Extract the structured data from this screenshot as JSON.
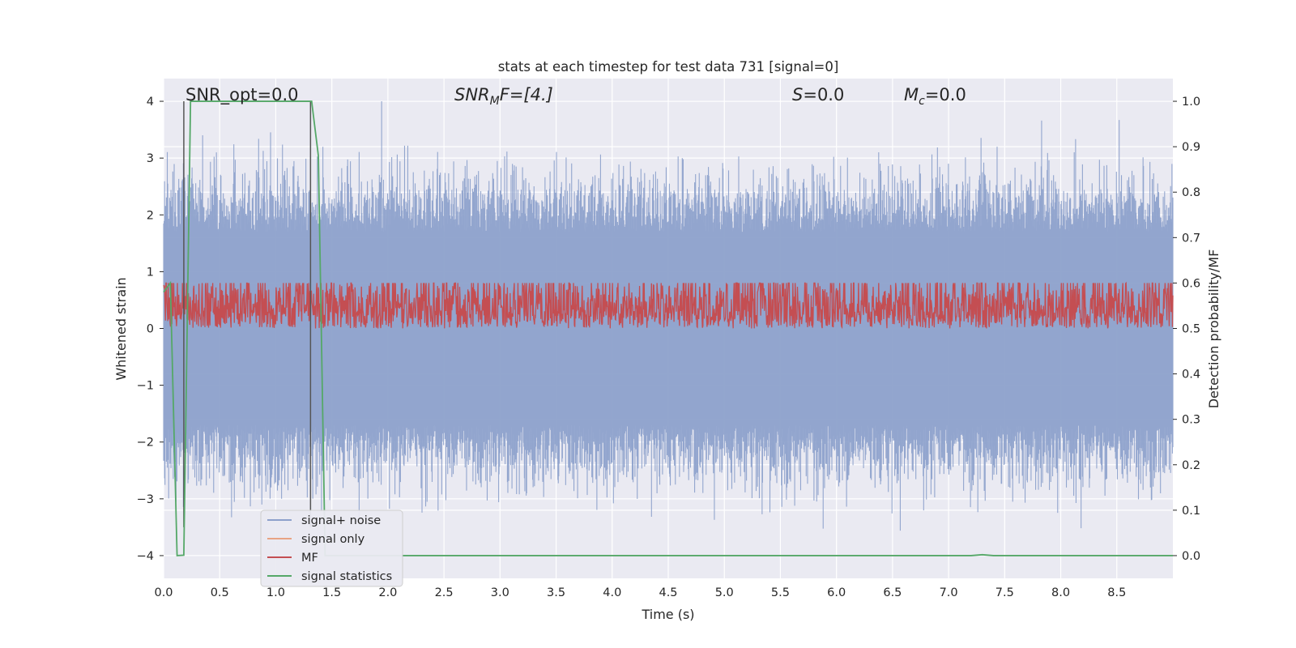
{
  "chart_data": {
    "type": "line",
    "title": "stats at each timestep for test data 731 [signal=0]",
    "xlabel": "Time (s)",
    "ylabel": "Whitened strain",
    "y2label": "Detection probability/MF",
    "xlim": [
      0.0,
      9.0
    ],
    "ylim": [
      -4.4,
      4.4
    ],
    "y2lim": [
      -0.05,
      1.05
    ],
    "xticks": [
      "0.0",
      "0.5",
      "1.0",
      "1.5",
      "2.0",
      "2.5",
      "3.0",
      "3.5",
      "4.0",
      "4.5",
      "5.0",
      "5.5",
      "6.0",
      "6.5",
      "7.0",
      "7.5",
      "8.0",
      "8.5"
    ],
    "yticks": [
      "4",
      "3",
      "2",
      "1",
      "0",
      "−1",
      "−2",
      "−3",
      "−4"
    ],
    "y2ticks": [
      "1.0",
      "0.9",
      "0.8",
      "0.7",
      "0.6",
      "0.5",
      "0.4",
      "0.3",
      "0.2",
      "0.1",
      "0.0"
    ],
    "annotations": {
      "snr_opt": "SNR_opt=0.0",
      "snr_mf_base": "SNR",
      "snr_mf_sub": "M",
      "snr_mf_tail": "F=[4.]",
      "s_var": "S",
      "s_val": "=0.0",
      "mc_var": "M",
      "mc_sub": "c",
      "mc_val": "=0.0"
    },
    "grid": true,
    "legend_position": "lower-left",
    "legend": [
      "signal+ noise",
      "signal only",
      "MF",
      "signal statistics"
    ],
    "colors": {
      "noise": "#8da1cb",
      "signal_only": "#e8a384",
      "mf": "#c44e52",
      "stats": "#55a868",
      "vline": "#555555"
    },
    "series": [
      {
        "name": "signal+ noise",
        "axis": "left",
        "description_range": [
          -4.0,
          4.0
        ],
        "x": [
          0.0,
          9.0
        ],
        "values": [
          -1.7,
          1.7
        ]
      },
      {
        "name": "signal only",
        "axis": "left",
        "x": [
          0.0,
          9.0
        ],
        "values": [
          0.0,
          0.0
        ]
      },
      {
        "name": "MF",
        "axis": "right",
        "x": [
          0.0,
          9.0
        ],
        "values": [
          0.5,
          0.64
        ]
      },
      {
        "name": "signal statistics",
        "axis": "right",
        "x": [
          0.0,
          0.06,
          0.12,
          0.18,
          0.24,
          0.3,
          0.36,
          1.32,
          1.38,
          1.44,
          1.5,
          7.2,
          7.3,
          7.4,
          9.0
        ],
        "values": [
          0.58,
          0.6,
          0.0,
          0.001,
          1.0,
          1.0,
          1.0,
          1.0,
          0.88,
          0.0,
          0.0,
          0.0,
          0.002,
          0.0,
          0.0
        ]
      }
    ],
    "vlines_x": [
      0.18,
      1.31
    ]
  }
}
